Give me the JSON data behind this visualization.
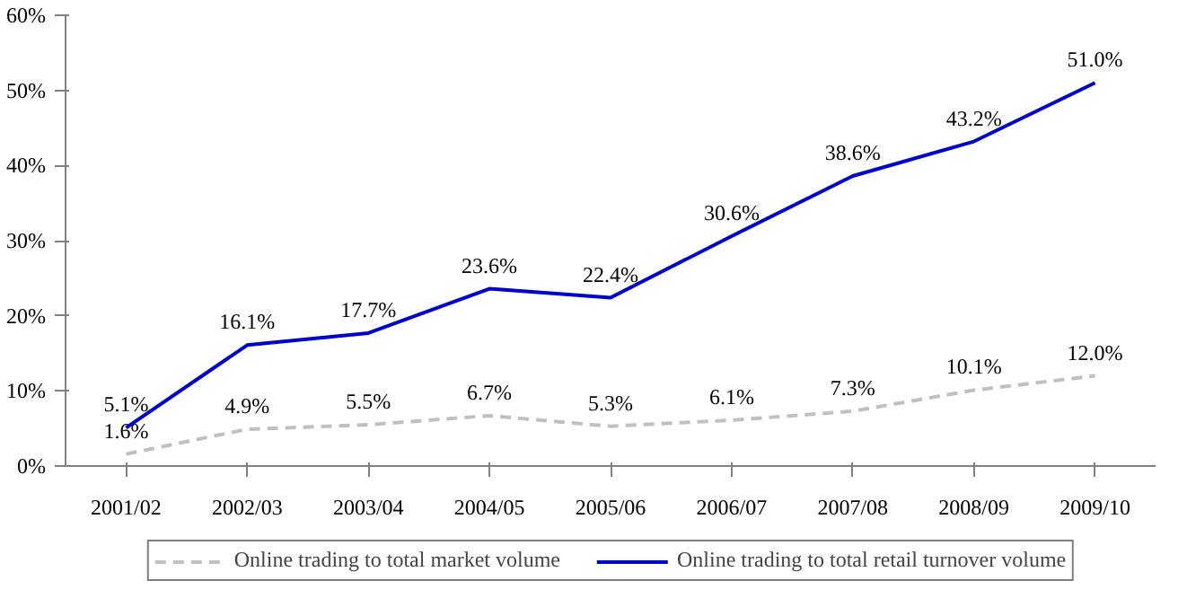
{
  "chart_data": {
    "type": "line",
    "categories": [
      "2001/02",
      "2002/03",
      "2003/04",
      "2004/05",
      "2005/06",
      "2006/07",
      "2007/08",
      "2008/09",
      "2009/10"
    ],
    "series": [
      {
        "name": "Online trading to total market volume",
        "color": "#c0c0c0",
        "line_style": "dashed",
        "values": [
          1.6,
          4.9,
          5.5,
          6.7,
          5.3,
          6.1,
          7.3,
          10.1,
          12.0
        ],
        "value_labels": [
          "1.6%",
          "4.9%",
          "5.5%",
          "6.7%",
          "5.3%",
          "6.1%",
          "7.3%",
          "10.1%",
          "12.0%"
        ]
      },
      {
        "name": "Online trading to total retail turnover volume",
        "color": "#0000cc",
        "line_style": "solid",
        "values": [
          5.1,
          16.1,
          17.7,
          23.6,
          22.4,
          30.6,
          38.6,
          43.2,
          51.0
        ],
        "value_labels": [
          "5.1%",
          "16.1%",
          "17.7%",
          "23.6%",
          "22.4%",
          "30.6%",
          "38.6%",
          "43.2%",
          "51.0%"
        ]
      }
    ],
    "ylim": [
      0,
      60
    ],
    "yticks": [
      {
        "value": 0,
        "label": "0%"
      },
      {
        "value": 10,
        "label": "10%"
      },
      {
        "value": 20,
        "label": "20%"
      },
      {
        "value": 30,
        "label": "30%"
      },
      {
        "value": 40,
        "label": "40%"
      },
      {
        "value": 50,
        "label": "50%"
      },
      {
        "value": 60,
        "label": "60%"
      }
    ],
    "grid": false,
    "legend": "bottom",
    "marker": "none"
  }
}
